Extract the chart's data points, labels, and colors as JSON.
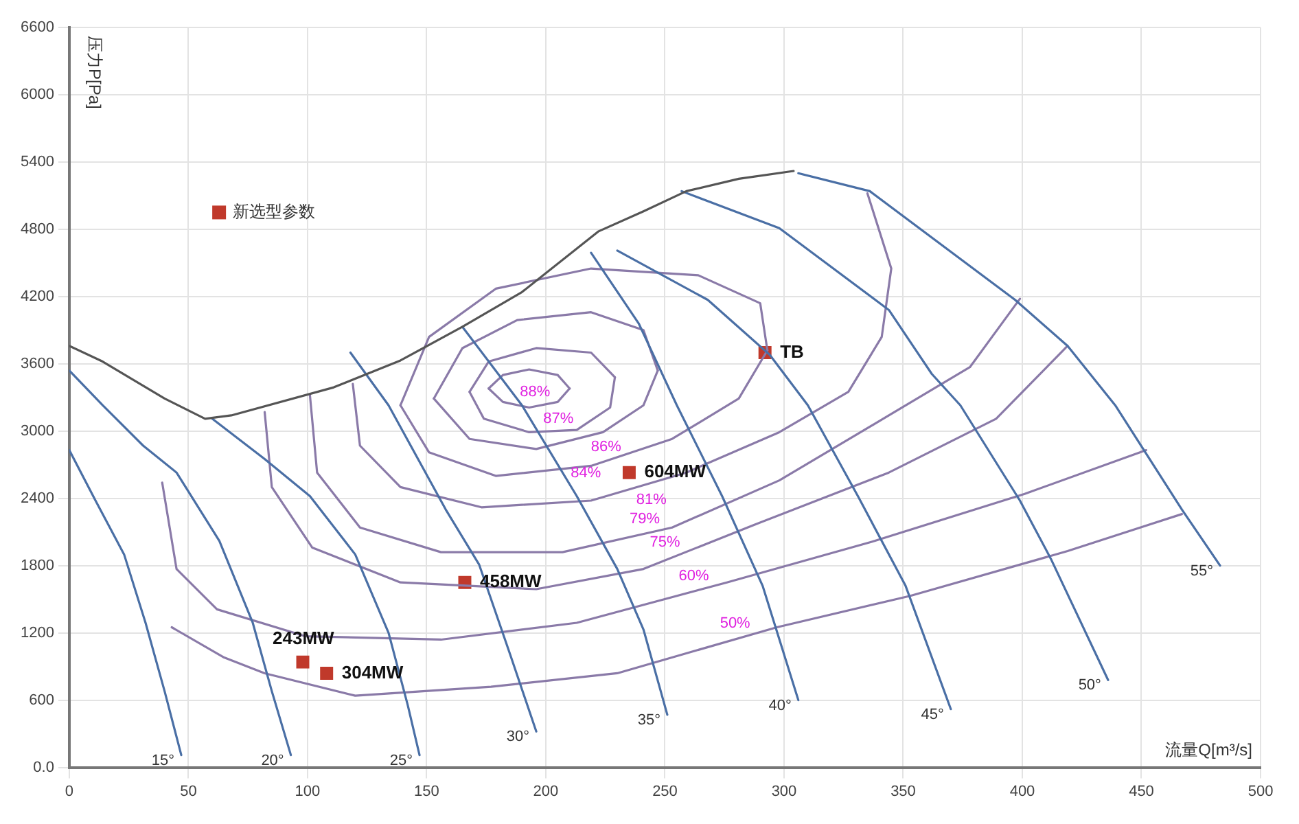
{
  "chart_data": {
    "type": "scatter",
    "xlabel": "流量Q[m³/s]",
    "ylabel": "压力P[Pa]",
    "xlim": [
      0,
      500
    ],
    "xticks": [
      0,
      50,
      100,
      150,
      200,
      250,
      300,
      350,
      400,
      450,
      500
    ],
    "ylim": [
      0,
      6600
    ],
    "yticks": [
      {
        "value": 0,
        "label": "0.0"
      },
      600,
      1200,
      1800,
      2400,
      3000,
      3600,
      4200,
      4800,
      5400,
      6000,
      6600
    ],
    "grid": true,
    "legend": "top left",
    "series": [
      {
        "type": "line",
        "color": "#555555",
        "x": [
          0,
          14,
          40,
          57,
          68,
          111,
          139,
          165,
          190,
          222,
          241,
          259,
          281,
          304
        ],
        "values": [
          3760,
          3620,
          3290,
          3110,
          3140,
          3390,
          3630,
          3930,
          4240,
          4780,
          4960,
          5140,
          5250,
          5320
        ]
      },
      {
        "type": "line",
        "color": "#4a6fa5",
        "x": [
          0,
          11,
          23,
          32,
          40,
          47
        ],
        "values": [
          2830,
          2380,
          1900,
          1290,
          680,
          110
        ]
      },
      {
        "type": "line",
        "color": "#4a6fa5",
        "x": [
          0,
          14,
          31,
          45,
          63,
          77,
          85,
          93
        ],
        "values": [
          3540,
          3230,
          2870,
          2630,
          2020,
          1290,
          680,
          110
        ]
      },
      {
        "type": "line",
        "color": "#4a6fa5",
        "x": [
          60,
          82,
          101,
          120,
          134,
          142,
          147
        ],
        "values": [
          3110,
          2750,
          2420,
          1900,
          1200,
          560,
          110
        ]
      },
      {
        "type": "line",
        "color": "#4a6fa5",
        "x": [
          118,
          134,
          158,
          172,
          185,
          196
        ],
        "values": [
          3700,
          3230,
          2300,
          1810,
          1010,
          320
        ]
      },
      {
        "type": "line",
        "color": "#4a6fa5",
        "x": [
          165,
          190,
          213,
          230,
          241,
          251
        ],
        "values": [
          3930,
          3230,
          2420,
          1770,
          1230,
          470
        ]
      },
      {
        "type": "line",
        "color": "#4a6fa5",
        "x": [
          219,
          239,
          255,
          274,
          291,
          306
        ],
        "values": [
          4590,
          3960,
          3230,
          2420,
          1620,
          600
        ]
      },
      {
        "type": "line",
        "color": "#4a6fa5",
        "x": [
          230,
          268,
          294,
          310,
          331,
          351,
          370
        ],
        "values": [
          4610,
          4170,
          3680,
          3230,
          2420,
          1620,
          520
        ]
      },
      {
        "type": "line",
        "color": "#4a6fa5",
        "x": [
          257,
          298,
          344,
          362,
          374,
          399,
          412,
          436
        ],
        "values": [
          5140,
          4810,
          4080,
          3510,
          3230,
          2380,
          1860,
          780
        ]
      },
      {
        "type": "line",
        "color": "#4a6fa5",
        "x": [
          306,
          336,
          397,
          419,
          439,
          467,
          483
        ],
        "values": [
          5300,
          5140,
          4170,
          3760,
          3230,
          2300,
          1800
        ]
      },
      {
        "type": "line",
        "color": "#8a7aa8",
        "x": [
          176,
          182,
          193,
          205,
          210
        ],
        "values": [
          3380,
          3500,
          3550,
          3500,
          3380
        ]
      },
      {
        "type": "line",
        "color": "#8a7aa8",
        "name": "88%",
        "x": [
          176,
          182,
          193,
          205,
          210
        ],
        "values": [
          3380,
          3260,
          3210,
          3260,
          3380
        ]
      },
      {
        "type": "line",
        "color": "#8a7aa8",
        "x": [
          168,
          176,
          196,
          219,
          229
        ],
        "values": [
          3350,
          3620,
          3740,
          3700,
          3480
        ]
      },
      {
        "type": "line",
        "color": "#8a7aa8",
        "name": "87%",
        "x": [
          168,
          174,
          193,
          213,
          227,
          229
        ],
        "values": [
          3350,
          3110,
          2990,
          3010,
          3210,
          3480
        ]
      },
      {
        "type": "line",
        "color": "#8a7aa8",
        "x": [
          153,
          165,
          188,
          219,
          241,
          247
        ],
        "values": [
          3290,
          3740,
          3990,
          4060,
          3900,
          3540
        ]
      },
      {
        "type": "line",
        "color": "#8a7aa8",
        "name": "86%",
        "x": [
          153,
          168,
          196,
          224,
          241,
          247
        ],
        "values": [
          3290,
          2930,
          2840,
          2990,
          3230,
          3540
        ]
      },
      {
        "type": "line",
        "color": "#8a7aa8",
        "x": [
          139,
          151,
          179,
          219,
          264,
          290,
          293
        ],
        "values": [
          3230,
          3840,
          4270,
          4450,
          4390,
          4140,
          3720
        ]
      },
      {
        "type": "line",
        "color": "#8a7aa8",
        "name": "84%",
        "x": [
          139,
          151,
          179,
          219,
          253,
          281,
          293
        ],
        "values": [
          3230,
          2810,
          2600,
          2690,
          2930,
          3290,
          3720
        ]
      },
      {
        "type": "line",
        "color": "#8a7aa8",
        "name": "81%",
        "x": [
          119,
          122,
          139,
          173,
          219,
          259,
          298,
          327,
          341,
          345,
          335
        ],
        "values": [
          3420,
          2870,
          2500,
          2320,
          2380,
          2630,
          2990,
          3350,
          3840,
          4450,
          5120
        ]
      },
      {
        "type": "line",
        "color": "#8a7aa8",
        "name": "79%",
        "x": [
          101,
          104,
          122,
          156,
          207,
          253,
          298,
          344,
          378,
          399
        ],
        "values": [
          3320,
          2630,
          2140,
          1920,
          1920,
          2140,
          2560,
          3140,
          3570,
          4180
        ]
      },
      {
        "type": "line",
        "color": "#8a7aa8",
        "name": "75%",
        "x": [
          82,
          85,
          102,
          139,
          196,
          241,
          287,
          344,
          389,
          419
        ],
        "values": [
          3170,
          2500,
          1960,
          1650,
          1590,
          1770,
          2160,
          2630,
          3110,
          3760
        ]
      },
      {
        "type": "line",
        "color": "#8a7aa8",
        "name": "60%",
        "x": [
          39,
          45,
          62,
          99,
          156,
          213,
          276,
          338,
          401,
          452
        ],
        "values": [
          2540,
          1770,
          1410,
          1170,
          1140,
          1290,
          1650,
          2020,
          2440,
          2830
        ]
      },
      {
        "type": "line",
        "color": "#8a7aa8",
        "name": "50%",
        "x": [
          43,
          65,
          82,
          120,
          177,
          230,
          297,
          353,
          419,
          467
        ],
        "values": [
          1250,
          980,
          840,
          640,
          720,
          840,
          1250,
          1530,
          1930,
          2260
        ]
      },
      {
        "name": "新选型参数",
        "marker": "square",
        "color": "#c0392b",
        "x": [
          98,
          108,
          166,
          235,
          292
        ],
        "values": [
          940,
          840,
          1650,
          2630,
          3700
        ]
      }
    ],
    "annotations": [
      {
        "text": "243MW",
        "x": 98,
        "y": 940
      },
      {
        "text": "304MW",
        "x": 108,
        "y": 840
      },
      {
        "text": "458MW",
        "x": 166,
        "y": 1650
      },
      {
        "text": "604MW",
        "x": 235,
        "y": 2630
      },
      {
        "text": "TB",
        "x": 292,
        "y": 3700
      },
      {
        "text": "15°",
        "x": 47,
        "y": 110
      },
      {
        "text": "20°",
        "x": 93,
        "y": 110
      },
      {
        "text": "25°",
        "x": 147,
        "y": 110
      },
      {
        "text": "30°",
        "x": 196,
        "y": 320
      },
      {
        "text": "35°",
        "x": 251,
        "y": 470
      },
      {
        "text": "40°",
        "x": 306,
        "y": 600
      },
      {
        "text": "45°",
        "x": 370,
        "y": 520
      },
      {
        "text": "50°",
        "x": 436,
        "y": 780
      },
      {
        "text": "55°",
        "x": 483,
        "y": 1800
      }
    ]
  }
}
